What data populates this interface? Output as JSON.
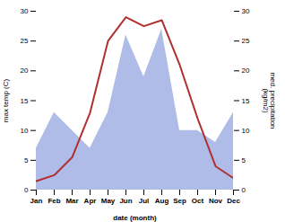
{
  "chart_data": {
    "type": "line",
    "categories": [
      "Jan",
      "Feb",
      "Mar",
      "Apr",
      "May",
      "Jun",
      "Jul",
      "Aug",
      "Sep",
      "Oct",
      "Nov",
      "Dec"
    ],
    "xlabel": "date (month)",
    "ylabel": "max temp (C)",
    "y2label": "med. precipitation\n(kg/m2)",
    "series": [
      {
        "type": "area",
        "axis": "y2",
        "color": "#b0bce8",
        "values": [
          7.0,
          13.0,
          10.0,
          7.0,
          13.0,
          26.0,
          19.0,
          27.0,
          10.0,
          10.0,
          8.0,
          13.0
        ]
      },
      {
        "type": "line",
        "color": "#b03030",
        "values": [
          1.5,
          2.5,
          5.5,
          13.0,
          25.0,
          29.0,
          27.5,
          28.5,
          21.0,
          12.0,
          4.0,
          2.0
        ]
      }
    ],
    "ylim": [
      0,
      30
    ],
    "yticks": [
      0,
      5,
      10,
      15,
      20,
      25,
      30
    ],
    "y2lim": [
      0,
      30
    ],
    "y2ticks": [
      0,
      5,
      10,
      15,
      20,
      25,
      30
    ]
  }
}
